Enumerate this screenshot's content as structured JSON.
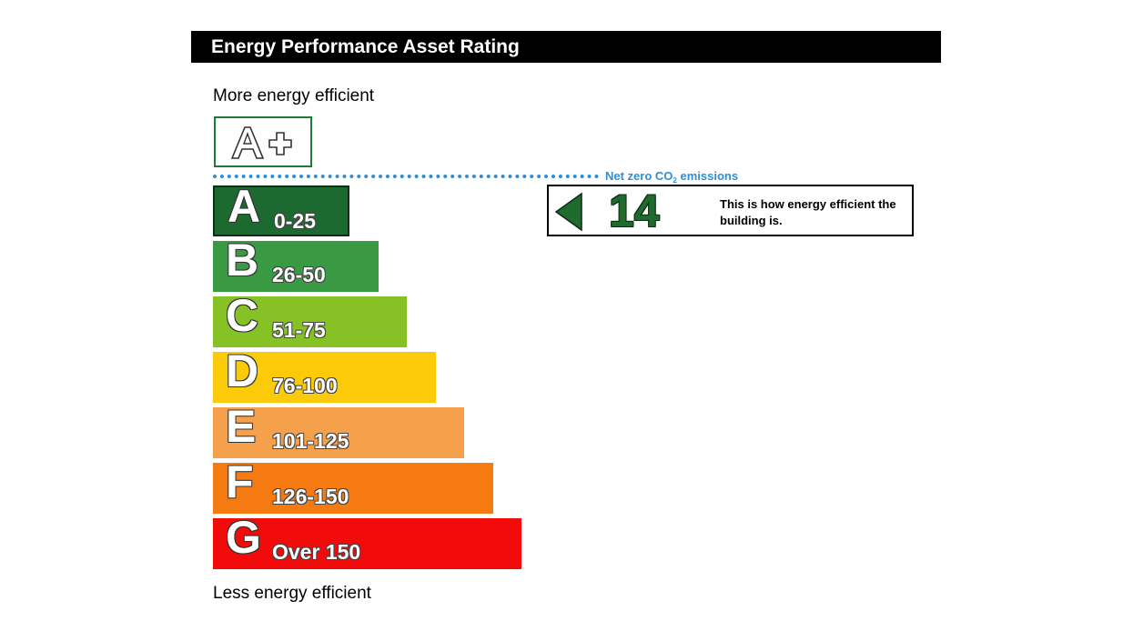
{
  "header": {
    "title": "Energy Performance Asset Rating"
  },
  "scale": {
    "top_label": "More energy efficient",
    "bottom_label": "Less energy efficient",
    "top_band": {
      "letter": "A+",
      "color": "#1e7b35"
    },
    "net_zero": {
      "prefix": "Net zero CO",
      "subscript": "2",
      "suffix": " emissions",
      "color": "#2e8fd6"
    }
  },
  "chart_data": {
    "type": "bar",
    "categories": [
      "A",
      "B",
      "C",
      "D",
      "E",
      "F",
      "G"
    ],
    "ranges": [
      "0-25",
      "26-50",
      "51-75",
      "76-100",
      "101-125",
      "126-150",
      "Over 150"
    ],
    "colors": [
      "#1d6a30",
      "#3a9a44",
      "#86c225",
      "#fbcb0a",
      "#f5a04a",
      "#f57a11",
      "#f10b0b"
    ],
    "highlighted": "A"
  },
  "rating": {
    "value": "14",
    "description": "This is how energy efficient the building is.",
    "color": "#1e6b2d"
  }
}
